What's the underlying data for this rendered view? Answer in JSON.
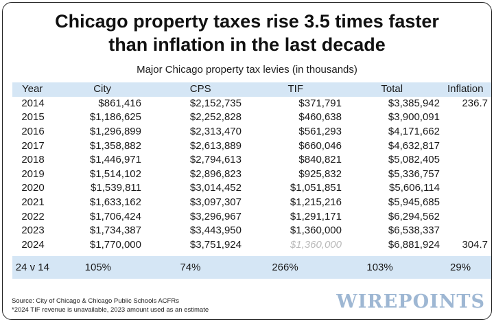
{
  "chart_data": {
    "type": "table",
    "title": "Chicago property taxes rise 3.5 times faster than inflation in the last decade",
    "title_lines": [
      "Chicago property taxes rise 3.5 times faster",
      "than inflation in the last decade"
    ],
    "subtitle": "Major Chicago property tax levies (in thousands)",
    "columns": [
      "Year",
      "City",
      "CPS",
      "TIF",
      "Total",
      "Inflation"
    ],
    "rows": [
      {
        "year": "2014",
        "city": "$861,416",
        "cps": "$2,152,735",
        "tif": "$371,791",
        "total": "$3,385,942",
        "inflation": "236.7"
      },
      {
        "year": "2015",
        "city": "$1,186,625",
        "cps": "$2,252,828",
        "tif": "$460,638",
        "total": "$3,900,091",
        "inflation": ""
      },
      {
        "year": "2016",
        "city": "$1,296,899",
        "cps": "$2,313,470",
        "tif": "$561,293",
        "total": "$4,171,662",
        "inflation": ""
      },
      {
        "year": "2017",
        "city": "$1,358,882",
        "cps": "$2,613,889",
        "tif": "$660,046",
        "total": "$4,632,817",
        "inflation": ""
      },
      {
        "year": "2018",
        "city": "$1,446,971",
        "cps": "$2,794,613",
        "tif": "$840,821",
        "total": "$5,082,405",
        "inflation": ""
      },
      {
        "year": "2019",
        "city": "$1,514,102",
        "cps": "$2,896,823",
        "tif": "$925,832",
        "total": "$5,336,757",
        "inflation": ""
      },
      {
        "year": "2020",
        "city": "$1,539,811",
        "cps": "$3,014,452",
        "tif": "$1,051,851",
        "total": "$5,606,114",
        "inflation": ""
      },
      {
        "year": "2021",
        "city": "$1,633,162",
        "cps": "$3,097,307",
        "tif": "$1,215,216",
        "total": "$5,945,685",
        "inflation": ""
      },
      {
        "year": "2022",
        "city": "$1,706,424",
        "cps": "$3,296,967",
        "tif": "$1,291,171",
        "total": "$6,294,562",
        "inflation": ""
      },
      {
        "year": "2023",
        "city": "$1,734,387",
        "cps": "$3,443,950",
        "tif": "$1,360,000",
        "total": "$6,538,337",
        "inflation": ""
      },
      {
        "year": "2024",
        "city": "$1,770,000",
        "cps": "$3,751,924",
        "tif": "$1,360,000",
        "total": "$6,881,924",
        "inflation": "304.7",
        "tif_estimate": true
      }
    ],
    "summary": {
      "year": "24 v 14",
      "city": "105%",
      "cps": "74%",
      "tif": "266%",
      "total": "103%",
      "inflation": "29%"
    },
    "colors": {
      "header_band": "#d5e6f5",
      "estimate_text": "#b9b9b9",
      "logo": "#9eb7d3"
    }
  },
  "footer": {
    "source": "Source: City of Chicago & Chicago Public Schools ACFRs",
    "note": "*2024 TIF revenue is unavailable, 2023 amount used as an estimate",
    "logo": "WIREPOINTS"
  }
}
